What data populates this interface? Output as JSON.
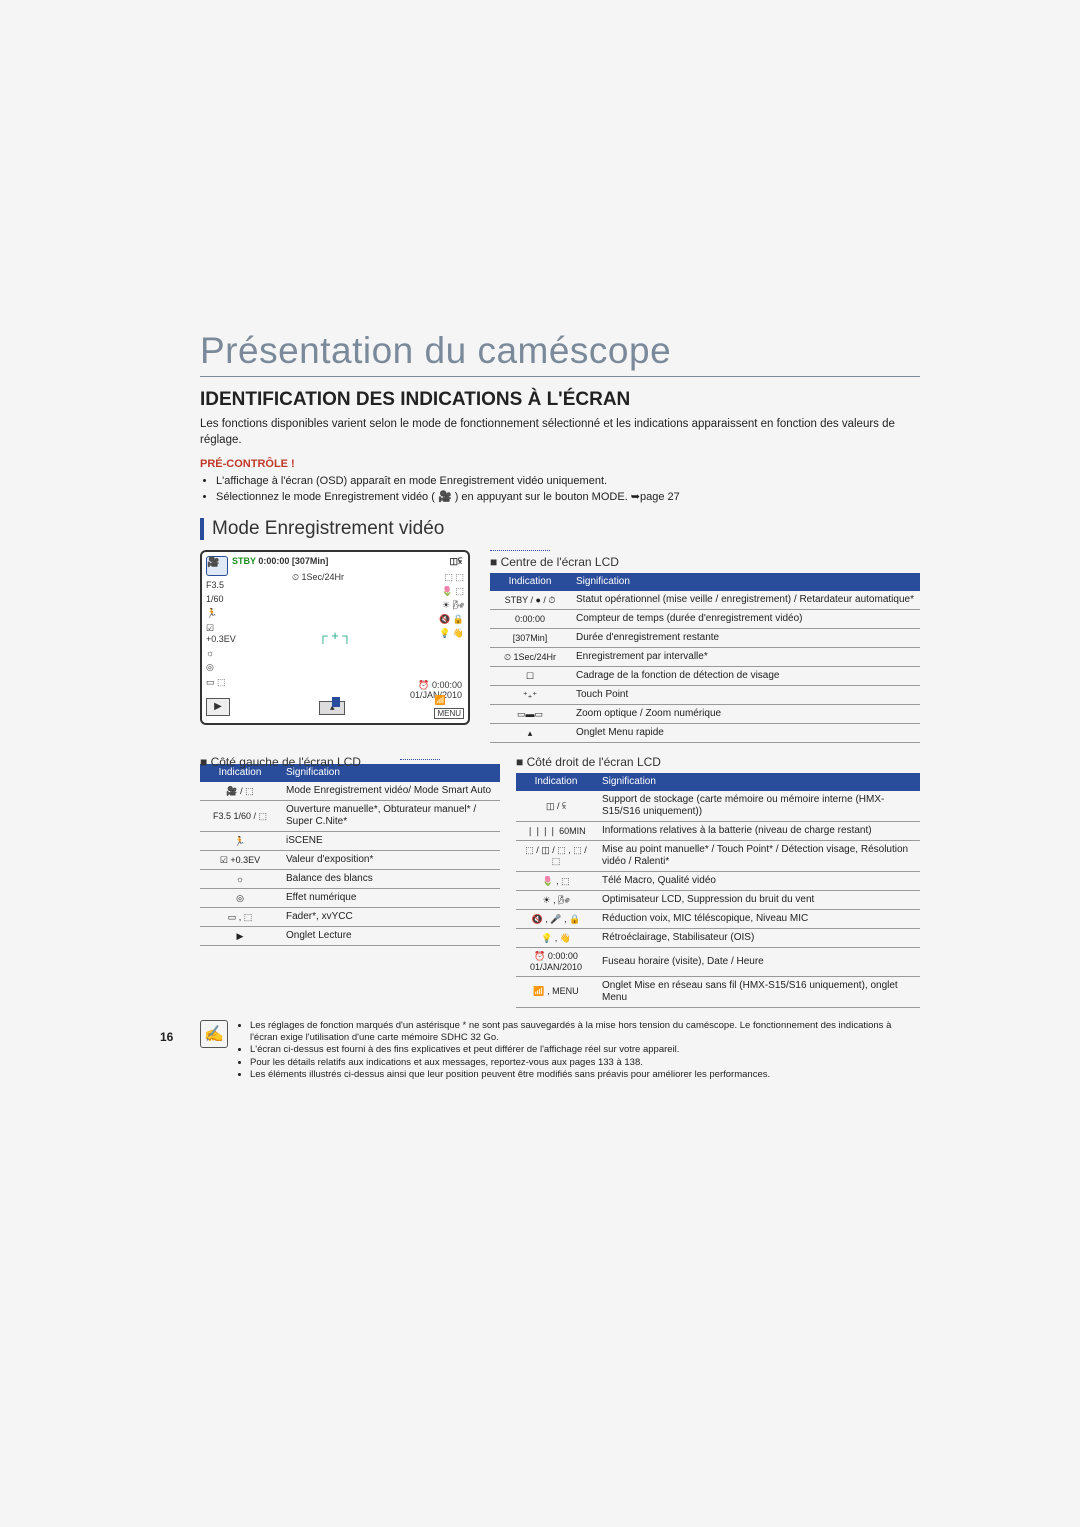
{
  "page_number": "16",
  "chapter_title": "Présentation du caméscope",
  "section_title": "IDENTIFICATION DES INDICATIONS À L'ÉCRAN",
  "intro_text": "Les fonctions disponibles varient selon le mode de fonctionnement sélectionné et les indications apparaissent en fonction des valeurs de réglage.",
  "precontrole_label": "PRÉ-CONTRÔLE !",
  "precontrole_bullets": [
    "L'affichage à l'écran (OSD) apparaît en mode Enregistrement vidéo uniquement.",
    "Sélectionnez le mode Enregistrement vidéo ( 🎥 )  en appuyant sur le bouton MODE. ➥page 27"
  ],
  "mode_heading": "Mode Enregistrement vidéo",
  "lcd": {
    "stby": "STBY",
    "timer": "0:00:00",
    "remain": "[307Min]",
    "interval": "1Sec/24Hr",
    "conn": "◫⫁",
    "batt": "❘❘❘❘ 60MIN",
    "f": "F3.5",
    "shutter": "1/60",
    "ev": "+0.3EV",
    "zoom_clock": "0:00:00",
    "date": "01/JAN/2010"
  },
  "headings": {
    "centre": "Centre de l'écran LCD",
    "gauche": "Côté gauche de l'écran LCD",
    "droit": "Côté droit de l'écran LCD"
  },
  "table_headers": {
    "indication": "Indication",
    "signification": "Signification"
  },
  "centre_table": [
    {
      "ind": "STBY / ● / ⏱",
      "sig": "Statut opérationnel (mise veille / enregistrement) / Retardateur automatique*"
    },
    {
      "ind": "0:00:00",
      "sig": "Compteur de temps (durée d'enregistrement vidéo)"
    },
    {
      "ind": "[307Min]",
      "sig": "Durée d'enregistrement restante"
    },
    {
      "ind": "⏲ 1Sec/24Hr",
      "sig": "Enregistrement par intervalle*"
    },
    {
      "ind": "☐",
      "sig": "Cadrage de la fonction de détection de visage"
    },
    {
      "ind": "⁺₊⁺",
      "sig": "Touch Point"
    },
    {
      "ind": "▭▬▭",
      "sig": "Zoom optique / Zoom numérique"
    },
    {
      "ind": "▴",
      "sig": "Onglet Menu rapide"
    }
  ],
  "gauche_table": [
    {
      "ind": "🎥 / ⬚",
      "sig": "Mode Enregistrement vidéo/ Mode Smart Auto"
    },
    {
      "ind": "F3.5 1/60 / ⬚",
      "sig": "Ouverture manuelle*, Obturateur manuel* / Super C.Nite*"
    },
    {
      "ind": "🏃",
      "sig": "iSCENE"
    },
    {
      "ind": "☑ +0.3EV",
      "sig": "Valeur d'exposition*"
    },
    {
      "ind": "☼",
      "sig": "Balance des blancs"
    },
    {
      "ind": "◎",
      "sig": "Effet numérique"
    },
    {
      "ind": "▭ , ⬚",
      "sig": "Fader*, xvYCC"
    },
    {
      "ind": "▶",
      "sig": "Onglet Lecture"
    }
  ],
  "droit_table": [
    {
      "ind": "◫ / ⫁",
      "sig": "Support de stockage (carte mémoire ou mémoire interne (HMX-S15/S16 uniquement))"
    },
    {
      "ind": "❘❘❘❘ 60MIN",
      "sig": "Informations relatives à la batterie (niveau de charge restant)"
    },
    {
      "ind": "⬚ / ◫ / ⬚ , ⬚ / ⬚",
      "sig": "Mise au point manuelle* / Touch Point* / Détection visage, Résolution vidéo / Ralenti*"
    },
    {
      "ind": "🌷 , ⬚",
      "sig": "Télé Macro, Qualité vidéo"
    },
    {
      "ind": "☀ , 🌬",
      "sig": "Optimisateur LCD, Suppression du bruit du vent"
    },
    {
      "ind": "🔇 , 🎤 , 🔒",
      "sig": "Réduction voix, MIC téléscopique, Niveau MIC"
    },
    {
      "ind": "💡 , 👋",
      "sig": "Rétroéclairage, Stabilisateur (OIS)"
    },
    {
      "ind": "⏰ 0:00:00 01/JAN/2010",
      "sig": "Fuseau horaire (visite), Date / Heure"
    },
    {
      "ind": "📶 , MENU",
      "sig": "Onglet Mise en réseau sans fil (HMX-S15/S16 uniquement), onglet Menu"
    }
  ],
  "notes": [
    "Les réglages de fonction marqués d'un astérisque * ne sont pas sauvegardés à la mise hors tension du caméscope. Le fonctionnement des indications à l'écran exige l'utilisation d'une carte mémoire SDHC 32 Go.",
    "L'écran ci-dessus est fourni à des fins explicatives et peut différer de l'affichage réel sur votre appareil.",
    "Pour les détails relatifs aux indications et aux messages, reportez-vous aux pages 133 à 138.",
    "Les éléments illustrés ci-dessus ainsi que leur position peuvent être modifiés sans préavis pour améliorer les performances."
  ],
  "colors": {
    "accent": "#2a4d9b",
    "chapter": "#7a8a9a",
    "warn": "#c0392b"
  }
}
